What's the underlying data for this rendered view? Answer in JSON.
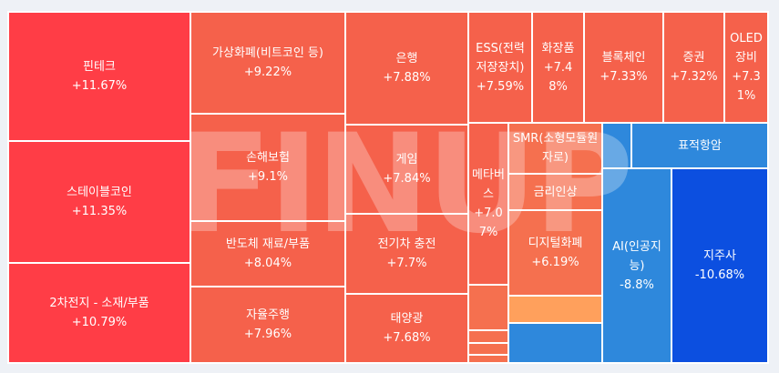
{
  "watermark": "FINUP",
  "chart_data": {
    "type": "treemap",
    "colors": {
      "strong_up": "#ff3d46",
      "up": "#f5614b",
      "mild_up": "#f5704f",
      "faint_up": "#ffa05c",
      "down": "#2e88dc",
      "strong_down": "#0c4fe0"
    },
    "tiles": [
      {
        "name": "핀테크",
        "value": "+11.67%",
        "change": 11.67,
        "color": "#ff3d46"
      },
      {
        "name": "스테이블코인",
        "value": "+11.35%",
        "change": 11.35,
        "color": "#ff3d46"
      },
      {
        "name": "2차전지 - 소재/부품",
        "value": "+10.79%",
        "change": 10.79,
        "color": "#ff3d46"
      },
      {
        "name": "가상화폐(비트코인 등)",
        "value": "+9.22%",
        "change": 9.22,
        "color": "#f5614b"
      },
      {
        "name": "손해보험",
        "value": "+9.1%",
        "change": 9.1,
        "color": "#f5614b"
      },
      {
        "name": "반도체 재료/부품",
        "value": "+8.04%",
        "change": 8.04,
        "color": "#f5614b"
      },
      {
        "name": "자율주행",
        "value": "+7.96%",
        "change": 7.96,
        "color": "#f5614b"
      },
      {
        "name": "은행",
        "value": "+7.88%",
        "change": 7.88,
        "color": "#f5614b"
      },
      {
        "name": "게임",
        "value": "+7.84%",
        "change": 7.84,
        "color": "#f5614b"
      },
      {
        "name": "전기차 충전",
        "value": "+7.7%",
        "change": 7.7,
        "color": "#f5614b"
      },
      {
        "name": "태양광",
        "value": "+7.68%",
        "change": 7.68,
        "color": "#f5614b"
      },
      {
        "name": "ESS(전력저장장치)",
        "value": "+7.59%",
        "change": 7.59,
        "color": "#f5614b"
      },
      {
        "name": "화장품",
        "value": "+7.48%",
        "change": 7.48,
        "color": "#f5614b"
      },
      {
        "name": "블록체인",
        "value": "+7.33%",
        "change": 7.33,
        "color": "#f5614b"
      },
      {
        "name": "증권",
        "value": "+7.32%",
        "change": 7.32,
        "color": "#f5614b"
      },
      {
        "name": "OLED 장비",
        "value": "+7.31%",
        "change": 7.31,
        "color": "#f5614b"
      },
      {
        "name": "메타버스",
        "value": "+7.07%",
        "change": 7.07,
        "color": "#f5614b"
      },
      {
        "name": "SMR(소형모듈원자로)",
        "value": "",
        "change": null,
        "color": "#f5704f"
      },
      {
        "name": "금리인상",
        "value": "",
        "change": null,
        "color": "#f5704f"
      },
      {
        "name": "디지털화폐",
        "value": "+6.19%",
        "change": 6.19,
        "color": "#f5704f"
      },
      {
        "name": "",
        "value": "",
        "change": null,
        "color": "#f5704f"
      },
      {
        "name": "",
        "value": "",
        "change": null,
        "color": "#f5704f"
      },
      {
        "name": "",
        "value": "",
        "change": null,
        "color": "#f5704f"
      },
      {
        "name": "",
        "value": "",
        "change": null,
        "color": "#f5704f"
      },
      {
        "name": "",
        "value": "",
        "change": null,
        "color": "#ffa05c"
      },
      {
        "name": "",
        "value": "",
        "change": null,
        "color": "#2e88dc"
      },
      {
        "name": "",
        "value": "",
        "change": null,
        "color": "#2e88dc"
      },
      {
        "name": "표적항암",
        "value": "",
        "change": null,
        "color": "#2e88dc"
      },
      {
        "name": "AI(인공지능)",
        "value": "-8.8%",
        "change": -8.8,
        "color": "#2e88dc"
      },
      {
        "name": "지주사",
        "value": "-10.68%",
        "change": -10.68,
        "color": "#0c4fe0"
      }
    ]
  }
}
